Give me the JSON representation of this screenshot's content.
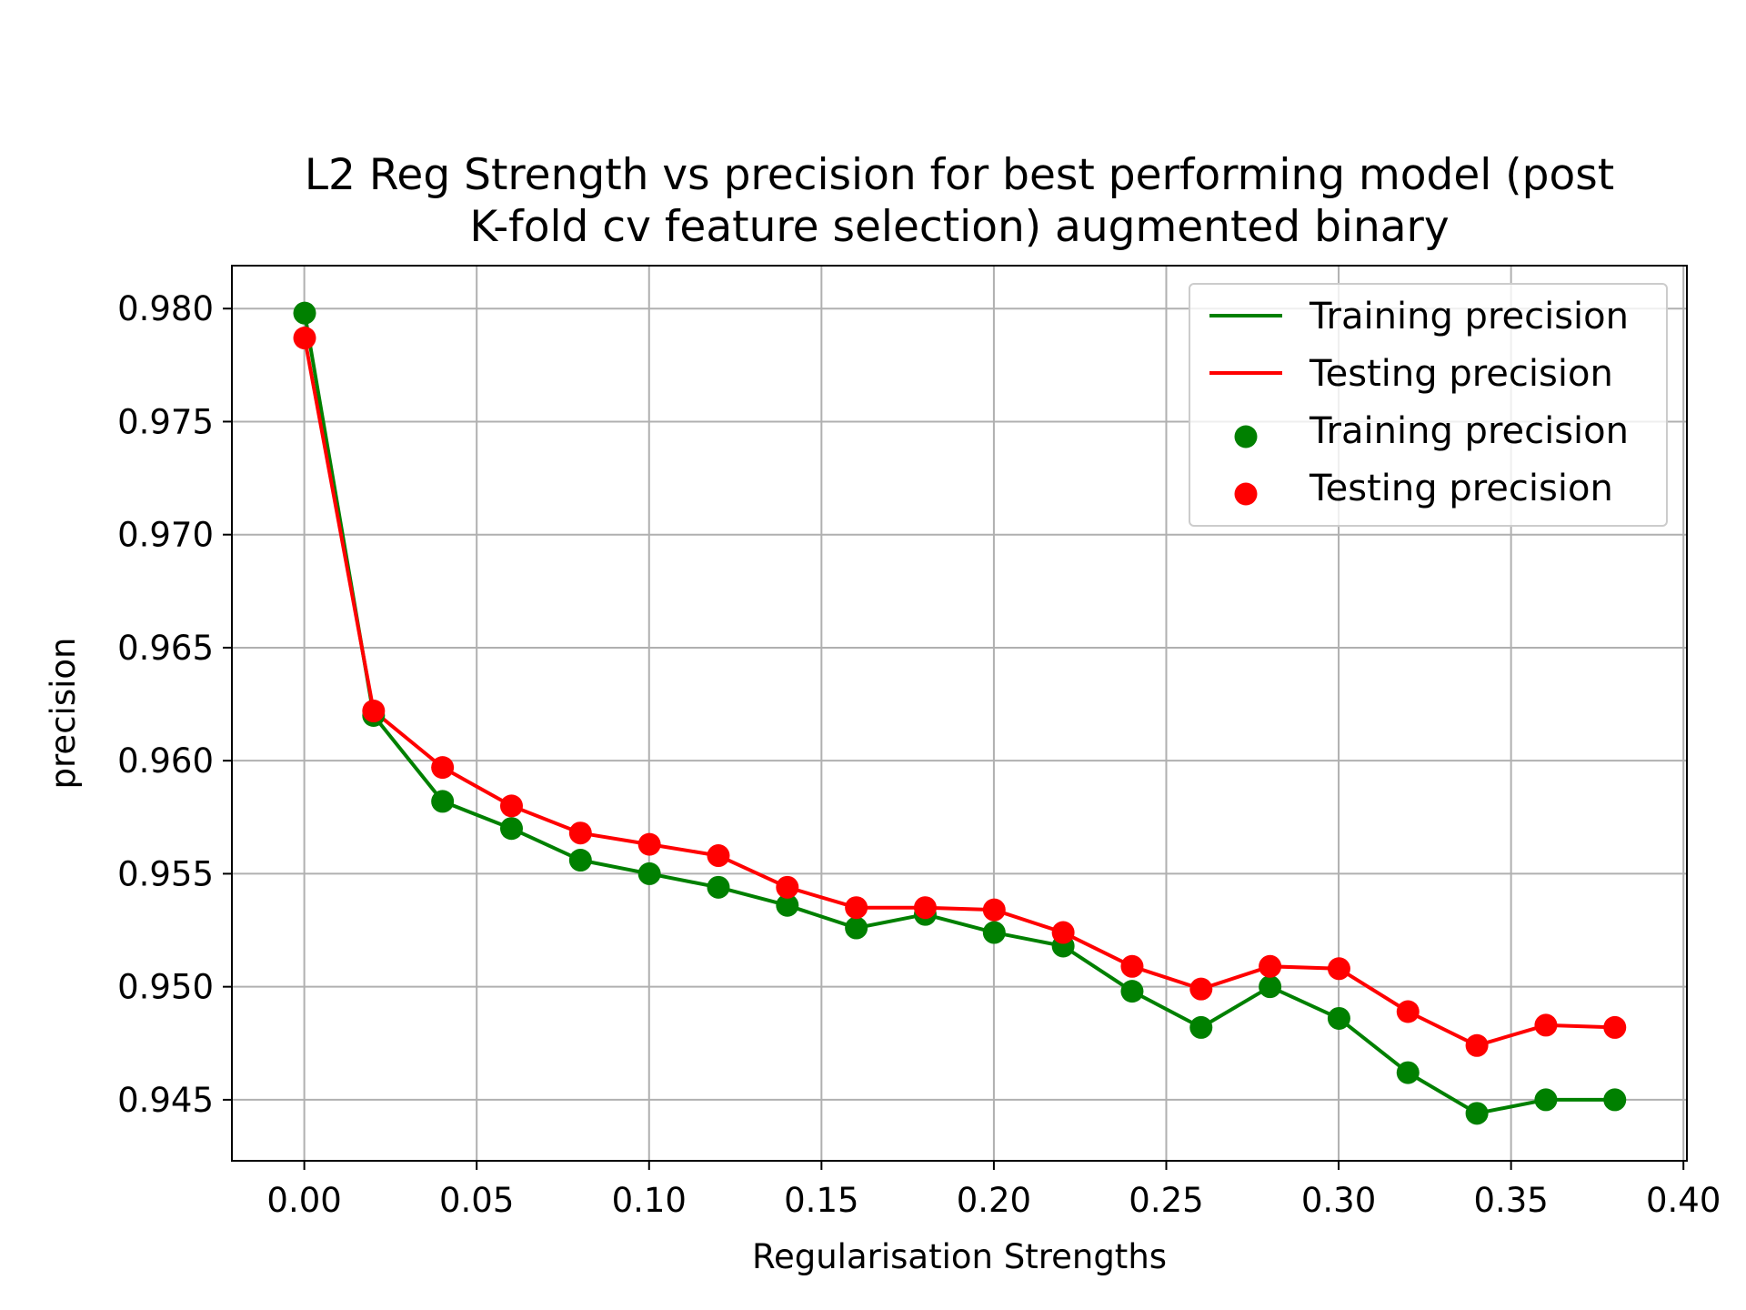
{
  "chart_data": {
    "type": "line",
    "title_lines": [
      "L2 Reg Strength vs precision for best performing model (post",
      "K-fold cv feature selection) augmented binary"
    ],
    "xlabel": "Regularisation Strengths",
    "ylabel": "precision",
    "xlim": [
      -0.021,
      0.401
    ],
    "ylim": [
      0.9423,
      0.9819
    ],
    "xticks": [
      0.0,
      0.05,
      0.1,
      0.15,
      0.2,
      0.25,
      0.3,
      0.35,
      0.4
    ],
    "xtick_labels": [
      "0.00",
      "0.05",
      "0.10",
      "0.15",
      "0.20",
      "0.25",
      "0.30",
      "0.35",
      "0.40"
    ],
    "yticks": [
      0.945,
      0.95,
      0.955,
      0.96,
      0.965,
      0.97,
      0.975,
      0.98
    ],
    "ytick_labels": [
      "0.945",
      "0.950",
      "0.955",
      "0.960",
      "0.965",
      "0.970",
      "0.975",
      "0.980"
    ],
    "grid": true,
    "legend_position": "top-right",
    "x": [
      0.0001,
      0.0201,
      0.0401,
      0.0601,
      0.0801,
      0.1001,
      0.1201,
      0.1401,
      0.1601,
      0.1801,
      0.2001,
      0.2201,
      0.2401,
      0.2601,
      0.2801,
      0.3001,
      0.3201,
      0.3401,
      0.3601,
      0.3801
    ],
    "series": [
      {
        "name": "Training precision",
        "color": "#008000",
        "values": [
          0.9798,
          0.962,
          0.9582,
          0.957,
          0.9556,
          0.955,
          0.9544,
          0.9536,
          0.9526,
          0.9532,
          0.9524,
          0.9518,
          0.9498,
          0.9482,
          0.95,
          0.9486,
          0.9462,
          0.9444,
          0.945,
          0.945
        ]
      },
      {
        "name": "Testing precision",
        "color": "#ff0000",
        "values": [
          0.9787,
          0.9622,
          0.9597,
          0.958,
          0.9568,
          0.9563,
          0.9558,
          0.9544,
          0.9535,
          0.9535,
          0.9534,
          0.9524,
          0.9509,
          0.9499,
          0.9509,
          0.9508,
          0.9489,
          0.9474,
          0.9483,
          0.9482
        ]
      }
    ],
    "legend": [
      {
        "label": "Training precision",
        "kind": "line",
        "color": "#008000"
      },
      {
        "label": "Testing precision",
        "kind": "line",
        "color": "#ff0000"
      },
      {
        "label": "Training precision",
        "kind": "marker",
        "color": "#008000"
      },
      {
        "label": "Testing precision",
        "kind": "marker",
        "color": "#ff0000"
      }
    ]
  }
}
